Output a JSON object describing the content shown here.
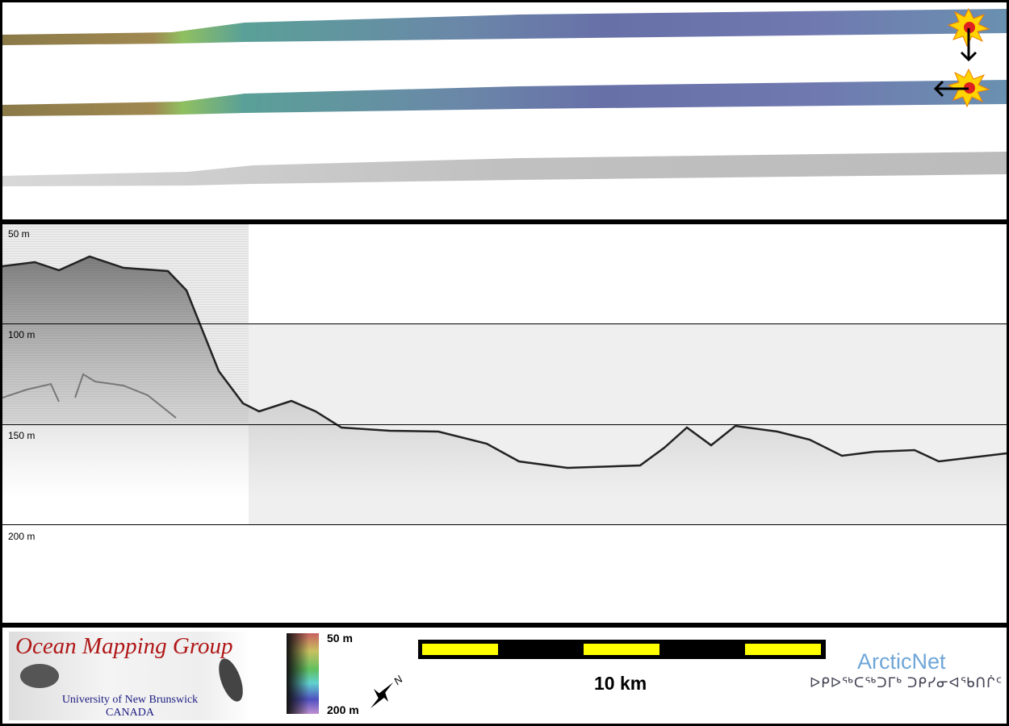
{
  "profile": {
    "depth_labels": [
      "50 m",
      "100 m",
      "150 m",
      "200 m"
    ]
  },
  "legend": {
    "logo": {
      "title": "Ocean Mapping Group",
      "line1": "University of New Brunswick",
      "line2": "CANADA"
    },
    "colorbar": {
      "top": "50 m",
      "bottom": "200 m",
      "colors": [
        "#c86060",
        "#c8c060",
        "#60c060",
        "#60d0d0",
        "#5050c0",
        "#c090d0"
      ]
    },
    "north_label": "N",
    "scale_label": "10 km",
    "scale_colors": {
      "fill": "#ffff00",
      "border": "#000000"
    },
    "partner": {
      "name": "ArcticNet",
      "syllabics": "ᐅᑭᐅᖅᑕᖅᑐᒥᒃ ᑐᑭᓯᓂᐊᖃᑎᒌᑦ"
    }
  }
}
